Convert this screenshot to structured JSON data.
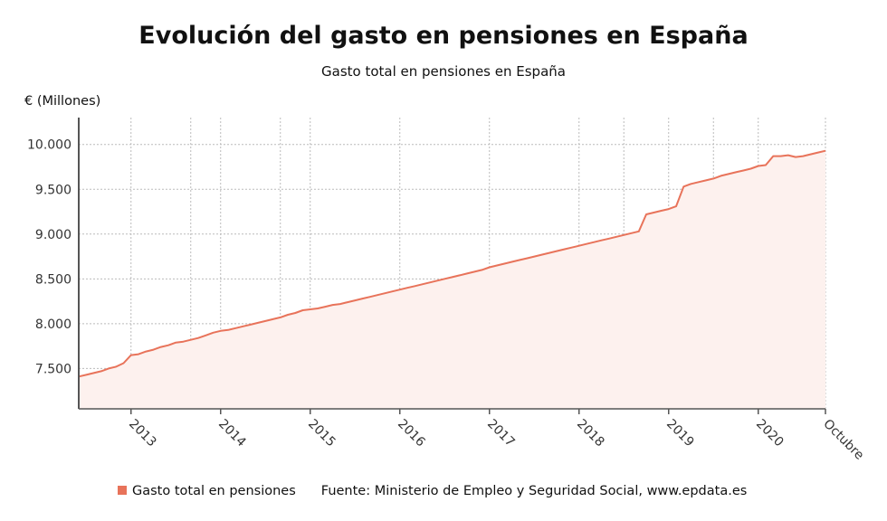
{
  "header": {
    "title": "Evolución del gasto en pensiones en España",
    "subtitle": "Gasto total en pensiones en España"
  },
  "footer": {
    "legend_label": "Gasto total en pensiones",
    "source": "Fuente: Ministerio de Empleo y Seguridad Social, www.epdata.es"
  },
  "colors": {
    "line": "#e8735a",
    "fill": "#fdf1ee",
    "grid": "#bbbbbb",
    "axis": "#555555"
  },
  "chart_data": {
    "type": "area",
    "title": "Evolución del gasto en pensiones en España",
    "subtitle": "Gasto total en pensiones en España",
    "ylabel": "€ (Millones)",
    "xlabel": "",
    "ylim": [
      7050,
      10300
    ],
    "xlim": [
      "2012-06",
      "2020-10"
    ],
    "yticks": [
      7500,
      8000,
      8500,
      9000,
      9500,
      10000
    ],
    "ytick_labels": [
      "7.500",
      "8.000",
      "8.500",
      "9.000",
      "9.500",
      "10.000"
    ],
    "xticks": [
      "2013-01",
      "2014-01",
      "2015-01",
      "2016-01",
      "2017-01",
      "2018-01",
      "2019-01",
      "2020-01",
      "2020-10"
    ],
    "xtick_labels": [
      "2013",
      "2014",
      "2015",
      "2016",
      "2017",
      "2018",
      "2019",
      "2020",
      "Octubre"
    ],
    "vertical_gridlines": [
      "2013-01",
      "2013-09",
      "2014-01",
      "2014-09",
      "2015-01",
      "2016-01",
      "2017-01",
      "2018-01",
      "2018-07",
      "2019-01",
      "2019-07",
      "2020-01",
      "2020-10"
    ],
    "grid": true,
    "legend_position": "bottom-left",
    "series": [
      {
        "name": "Gasto total en pensiones",
        "x": [
          "2012-06",
          "2012-07",
          "2012-08",
          "2012-09",
          "2012-10",
          "2012-11",
          "2012-12",
          "2013-01",
          "2013-02",
          "2013-03",
          "2013-04",
          "2013-05",
          "2013-06",
          "2013-07",
          "2013-08",
          "2013-09",
          "2013-10",
          "2013-11",
          "2013-12",
          "2014-01",
          "2014-02",
          "2014-03",
          "2014-04",
          "2014-05",
          "2014-06",
          "2014-07",
          "2014-08",
          "2014-09",
          "2014-10",
          "2014-11",
          "2014-12",
          "2015-01",
          "2015-02",
          "2015-03",
          "2015-04",
          "2015-05",
          "2015-06",
          "2015-07",
          "2015-08",
          "2015-09",
          "2015-10",
          "2015-11",
          "2015-12",
          "2016-01",
          "2016-02",
          "2016-03",
          "2016-04",
          "2016-05",
          "2016-06",
          "2016-07",
          "2016-08",
          "2016-09",
          "2016-10",
          "2016-11",
          "2016-12",
          "2017-01",
          "2017-02",
          "2017-03",
          "2017-04",
          "2017-05",
          "2017-06",
          "2017-07",
          "2017-08",
          "2017-09",
          "2017-10",
          "2017-11",
          "2017-12",
          "2018-01",
          "2018-02",
          "2018-03",
          "2018-04",
          "2018-05",
          "2018-06",
          "2018-07",
          "2018-08",
          "2018-09",
          "2018-10",
          "2018-11",
          "2018-12",
          "2019-01",
          "2019-02",
          "2019-03",
          "2019-04",
          "2019-05",
          "2019-06",
          "2019-07",
          "2019-08",
          "2019-09",
          "2019-10",
          "2019-11",
          "2019-12",
          "2020-01",
          "2020-02",
          "2020-03",
          "2020-04",
          "2020-05",
          "2020-06",
          "2020-07",
          "2020-08",
          "2020-09",
          "2020-10"
        ],
        "values": [
          7410,
          7430,
          7450,
          7470,
          7500,
          7520,
          7560,
          7650,
          7660,
          7690,
          7710,
          7740,
          7760,
          7790,
          7800,
          7820,
          7840,
          7870,
          7900,
          7920,
          7930,
          7950,
          7970,
          7990,
          8010,
          8030,
          8050,
          8070,
          8100,
          8120,
          8150,
          8160,
          8170,
          8190,
          8210,
          8220,
          8240,
          8260,
          8280,
          8300,
          8320,
          8340,
          8360,
          8380,
          8400,
          8420,
          8440,
          8460,
          8480,
          8500,
          8520,
          8540,
          8560,
          8580,
          8600,
          8630,
          8650,
          8670,
          8690,
          8710,
          8730,
          8750,
          8770,
          8790,
          8810,
          8830,
          8850,
          8870,
          8890,
          8910,
          8930,
          8950,
          8970,
          8990,
          9010,
          9030,
          9220,
          9240,
          9260,
          9280,
          9310,
          9530,
          9560,
          9580,
          9600,
          9620,
          9650,
          9670,
          9690,
          9710,
          9730,
          9760,
          9770,
          9870,
          9870,
          9880,
          9860,
          9870,
          9890,
          9910,
          9930
        ]
      }
    ]
  }
}
